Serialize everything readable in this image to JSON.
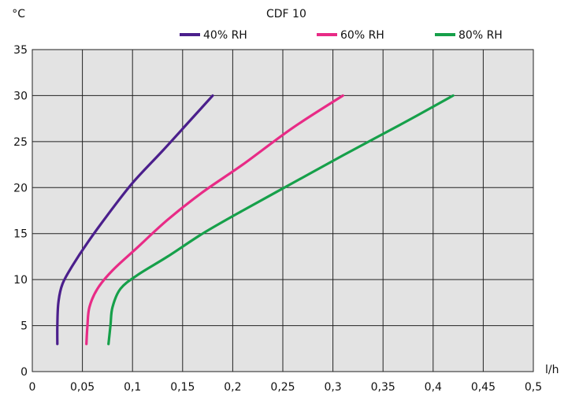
{
  "chart_data": {
    "type": "line",
    "title": "CDF 10",
    "xlabel": "l/h",
    "ylabel": "°C",
    "xlim": [
      0,
      0.5
    ],
    "ylim": [
      0,
      35
    ],
    "x_ticks": [
      "0",
      "0,05",
      "0,1",
      "0,15",
      "0,2",
      "0,25",
      "0,3",
      "0,35",
      "0,4",
      "0,45",
      "0,5"
    ],
    "y_ticks": [
      "0",
      "5",
      "10",
      "15",
      "20",
      "25",
      "30",
      "35"
    ],
    "grid": true,
    "legend_position": "top",
    "series": [
      {
        "name": "40% RH",
        "color": "#4b1f8c",
        "points": [
          [
            0.025,
            3
          ],
          [
            0.025,
            5
          ],
          [
            0.026,
            7.5
          ],
          [
            0.03,
            9.5
          ],
          [
            0.04,
            11.5
          ],
          [
            0.055,
            14
          ],
          [
            0.075,
            17
          ],
          [
            0.1,
            20.5
          ],
          [
            0.13,
            24
          ],
          [
            0.155,
            27
          ],
          [
            0.18,
            30
          ]
        ]
      },
      {
        "name": "60% RH",
        "color": "#e82b86",
        "points": [
          [
            0.054,
            3
          ],
          [
            0.055,
            5
          ],
          [
            0.057,
            7
          ],
          [
            0.065,
            9
          ],
          [
            0.08,
            11
          ],
          [
            0.105,
            13.5
          ],
          [
            0.135,
            16.5
          ],
          [
            0.17,
            19.5
          ],
          [
            0.21,
            22.5
          ],
          [
            0.26,
            26.5
          ],
          [
            0.31,
            30
          ]
        ]
      },
      {
        "name": "80% RH",
        "color": "#16a04a",
        "points": [
          [
            0.076,
            3
          ],
          [
            0.078,
            5
          ],
          [
            0.08,
            7
          ],
          [
            0.088,
            9
          ],
          [
            0.105,
            10.5
          ],
          [
            0.135,
            12.5
          ],
          [
            0.17,
            15
          ],
          [
            0.21,
            17.5
          ],
          [
            0.26,
            20.5
          ],
          [
            0.31,
            23.5
          ],
          [
            0.37,
            27
          ],
          [
            0.42,
            30
          ]
        ]
      }
    ]
  }
}
